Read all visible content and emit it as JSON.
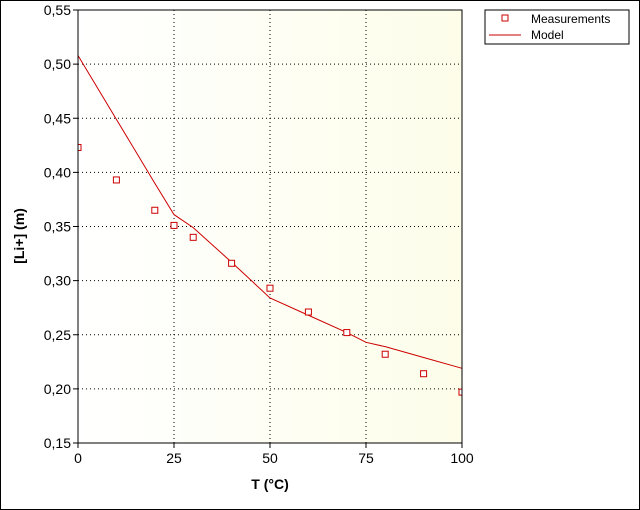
{
  "chart_data": {
    "type": "scatter",
    "title": "",
    "xlabel": "T (°C)",
    "ylabel": "[Li+] (m)",
    "xlim": [
      0,
      100
    ],
    "ylim": [
      0.15,
      0.55
    ],
    "x_ticks": [
      "0",
      "25",
      "50",
      "75",
      "100"
    ],
    "y_ticks": [
      "0,15",
      "0,20",
      "0,25",
      "0,30",
      "0,35",
      "0,40",
      "0,45",
      "0,50",
      "0,55"
    ],
    "grid": true,
    "legend_position": "top-right, outside plot",
    "plot_background": "#fdfdea",
    "series": [
      {
        "name": "Measurements",
        "type": "scatter",
        "marker": "square",
        "color": "#cc0000",
        "x": [
          0,
          10,
          20,
          25,
          30,
          40,
          50,
          60,
          70,
          80,
          90,
          100
        ],
        "y": [
          0.423,
          0.393,
          0.365,
          0.351,
          0.34,
          0.316,
          0.293,
          0.271,
          0.252,
          0.232,
          0.214,
          0.197
        ]
      },
      {
        "name": "Model",
        "type": "line",
        "color": "#cc0000",
        "x": [
          0,
          10,
          20,
          25,
          30,
          40,
          50,
          60,
          70,
          75,
          80,
          90,
          100
        ],
        "y": [
          0.508,
          0.449,
          0.39,
          0.361,
          0.349,
          0.317,
          0.284,
          0.268,
          0.252,
          0.243,
          0.239,
          0.229,
          0.219
        ]
      }
    ]
  }
}
